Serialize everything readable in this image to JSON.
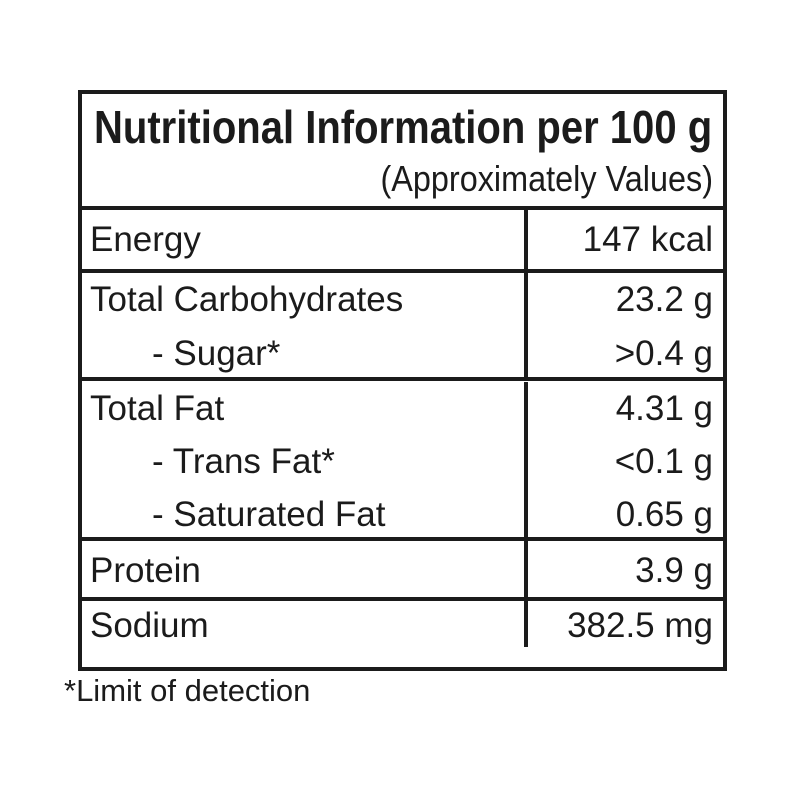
{
  "colors": {
    "background": "#ffffff",
    "text": "#1b1b1b",
    "border": "#1b1b1b"
  },
  "table": {
    "title": "Nutritional Information per 100 g",
    "subtitle": "(Approximately Values)",
    "rows": [
      {
        "label": "Energy",
        "value": "147 kcal",
        "sub": []
      },
      {
        "label": "Total Carbohydrates",
        "value": "23.2 g",
        "sub": [
          {
            "label": "- Sugar*",
            "value": ">0.4 g"
          }
        ]
      },
      {
        "label": "Total Fat",
        "value": "4.31 g",
        "sub": [
          {
            "label": "- Trans Fat*",
            "value": "<0.1 g"
          },
          {
            "label": "- Saturated Fat",
            "value": "0.65 g"
          }
        ]
      },
      {
        "label": "Protein",
        "value": "3.9 g",
        "sub": []
      },
      {
        "label": "Sodium",
        "value": "382.5 mg",
        "sub": []
      }
    ],
    "footnote": "*Limit of detection"
  }
}
